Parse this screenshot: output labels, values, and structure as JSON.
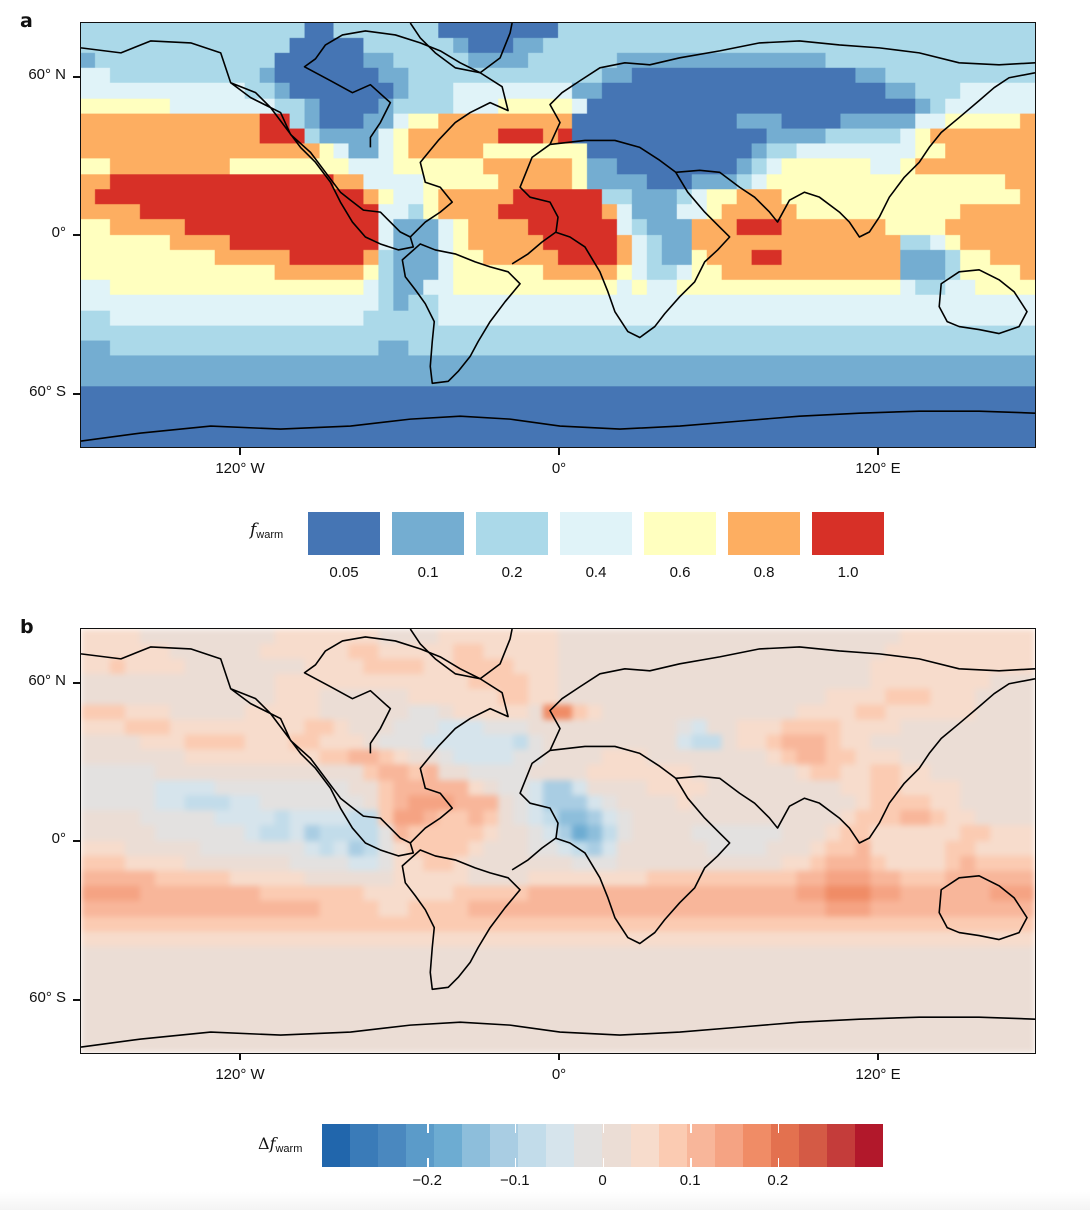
{
  "panels": {
    "a": {
      "label": "a"
    },
    "b": {
      "label": "b"
    }
  },
  "axes": {
    "y_ticks": [
      "60° N",
      "0°",
      "60° S"
    ],
    "x_ticks": [
      "120° W",
      "0°",
      "120° E"
    ]
  },
  "legend_a": {
    "symbol": "f",
    "subscript": "warm",
    "classes": [
      {
        "value": "0.05",
        "color": "#4575b4"
      },
      {
        "value": "0.1",
        "color": "#74add1"
      },
      {
        "value": "0.2",
        "color": "#abd9e9"
      },
      {
        "value": "0.4",
        "color": "#e0f3f8"
      },
      {
        "value": "0.6",
        "color": "#ffffbf"
      },
      {
        "value": "0.8",
        "color": "#fdae61"
      },
      {
        "value": "1.0",
        "color": "#d73027"
      }
    ]
  },
  "legend_b": {
    "prefix": "Δ",
    "symbol": "f",
    "subscript": "warm",
    "tick_labels": [
      "−0.2",
      "−0.1",
      "0",
      "0.1",
      "0.2"
    ],
    "tick_values": [
      -0.2,
      -0.1,
      0,
      0.1,
      0.2
    ],
    "range": [
      -0.32,
      0.32
    ],
    "colors": [
      "#2166ac",
      "#3a7bb8",
      "#4a88bf",
      "#5b9bc9",
      "#6dacd2",
      "#8dbedb",
      "#a9cde3",
      "#c2dcea",
      "#d6e4ec",
      "#e3e1e0",
      "#ebddd5",
      "#f7dccc",
      "#fbcbb2",
      "#f8b69a",
      "#f5a383",
      "#f08c66",
      "#e3714f",
      "#d45a45",
      "#c43c3a",
      "#b2182b"
    ]
  },
  "chart_data": [
    {
      "type": "heatmap",
      "title": "a",
      "description": "Global map of f_warm fraction (classed)",
      "colorbar_label": "f_warm",
      "colorbar_classes": [
        "0.05",
        "0.1",
        "0.2",
        "0.4",
        "0.6",
        "0.8",
        "1.0"
      ],
      "xlabel": "",
      "ylabel": "",
      "x_ticks": [
        "120° W",
        "0°",
        "120° E"
      ],
      "y_ticks": [
        "60° N",
        "0°",
        "60° S"
      ],
      "grid_cols": 64,
      "grid_rows": 28,
      "notes": "Class index 0..6 maps to colorbar classes. Rows north→south.",
      "rows": [
        "2222222222222220022222220000000022222222222222222222222222222222",
        "2222222222222200000222222100011222222222222222222222222222222222",
        "1222222222222000000112222211112222221111111111111122222222222222",
        "3322222222221000000011222222222222211000000000000000112222222222",
        "3333333333322100000001222333333331100000000000000000001122233333",
        "4444443333333221000012222333444443000000000000000000000012333333",
        "5555555555556621000113445555555550000000000011100001111133444445",
        "5555555555556662111134555555666560000000000000111122222345555555",
        "5555555555555555431134555554444444000000000001223333333344555555",
        "4455555555444444443334444445555554110000000012344444433455555555",
        "5566666666666666655333344444555554111100011123444444444444444455",
        "5666666666666666666543345555566666622111234455544444444444444445",
        "5555666666666666666633245555666666653111334555554444444444455555",
        "4455555666666666666631113455556666663211155566655555554444555555",
        "4444445555666666666631113455555666665321155555555555555223455555",
        "4444444445555566666521113445555566665321145556655555555111244555",
        "4444444444444555555421113444444555554322344555555555555111244445",
        "3344444444444444444321133444444444443433444444444444444322334444",
        "3333333333333333333321223333333333333333333333333333333333333333",
        "2233333333333333333222223333333333333333333333333333333333333333",
        "2222222222222222222222222222222222222222222222222222222222222222",
        "1122222222222222222211222222222222222222222222222222222222222222",
        "1111111111111111111111111111111111111111111111111111111111111111",
        "1111111111111111111111111111111111111111111111111111111111111111",
        "0000000000000000000000000000000000000000000000000000000000000000",
        "0000000000000000000000000000000000000000000000000000000000000000",
        "0000000000000000000000000000000000000000000000000000000000000000",
        "0000000000000000000000000000000000000000000000000000000000000000"
      ]
    },
    {
      "type": "heatmap",
      "title": "b",
      "description": "Global map of change in f_warm (Δf_warm)",
      "colorbar_label": "Δf_warm",
      "colorbar_range": [
        -0.32,
        0.32
      ],
      "colorbar_ticks": [
        -0.2,
        -0.1,
        0,
        0.1,
        0.2
      ],
      "n_bins": 20,
      "x_ticks": [
        "120° W",
        "0°",
        "120° E"
      ],
      "y_ticks": [
        "60° N",
        "0°",
        "60° S"
      ],
      "grid_cols": 64,
      "grid_rows": 28,
      "notes": "Class index A..T (0..19) into 20-color diverging ramp; J/K near zero. Rows north→south.",
      "rows": [
        "LLLLKKKKKKKKKLLLLLLLKKKKLLLLLLLLKKKKKKKKKKKKKKKKKKKKKKKLLLLLLLLL",
        "LLLLLLKKKKKKLLLLLLMMLLLLLMMLLLLLKKKKKKKKKKKKKKKKKKKKKKLLLLLLLLLL",
        "LLMLLLLKKKKKKKKLLLLMMMMLLMMMMLLLKKKKKKKKKKKKKKKKKKKKKLLLLLLLLLLL",
        "KKKKKKKKKKKKKLLLLLLLLLLLLLMMMMLLKKKKKKKKKKKKKKKKKKKKKLLLLLLLLKKK",
        "KKKKKKKKKKKKKLLLKKKKKKLLLLLLMMLLKKKKKKKKKKKKKKKKKKLLLLMMMLLLKKKK",
        "MMMLLLKKKKKLLLLLKKKKKKJJKLLLLLKPPMLKKKKKKKKKKKKKLLLLMMLLLLLLKKKK",
        "LLLMMMLLLLLLLLLMMLKKKJJJIIIJJJKKKKKKKKKKJIKKLLLMMMMLLLLKKKKKKKKK",
        "KKKKLLLMMMMLLLMMLLLKJJJIIIIIIHJKKKKKKKKKIHHKLLMNNNMLLKKKKKKKKKKK",
        "KKKKKKKLLLLLLLLLMMNNMLKKJIIIIJJKKKKLLLKKKKKKKKLMNNMMLLLKKKKKKKKK",
        "JJJJJKKKKKKKKKKKKKKMNNMNKKJJJJKKKKLLLLLLLKKKKKKKLMMLLMMLLKKKKKKK",
        "JJJJJIIIIJJJJJJJJJKKMNNNNNLKJJIGGIKKKKLLLLKKKKKKKKKLLMMLLLLKKKKK",
        "JJJJJIIHHHIIJJJJJJJKMNOOONNNKJIGGGIJKKKKLKKKKKKKKKKKLMMMMLLKKKKK",
        "KKKKJJJJJIIIIHIIIIHHMOONMMNMKJIHFFGIJKKKKKKKKKKKKKKLMMMNNMLLKKKK",
        "KKKKKJJJJJJIHHIGHHHHJNMMMMMLKKJIGEFHJKKKKJJJJJJKKKLMMLLLLLLMMLLL",
        "LLLKKKKKJJJJJJJIHIGHJLMMMMLKKKJJIHGIKKKKKKJJJJKKKLMMNLLLLLMMLLLL",
        "MMMLLLLKKKKKKKJJJJIIJLLMMLKKKKKKKJJJKKKKKKKKKKKLLMNNNMLLLLMNMMMM",
        "NNNNNMMMMMLLLLLKKKKKKLLLLLKKKKLLLLLLLLMMMMMMMMMMNNOOONNMMMNNNNNN",
        "OOOONNNNNNNNMMMMMMMLLLLLLMMMMMNNNNNNNNNNNNNNNNNNOOPPPOONNNNNNOOO",
        "NNNNNNNNNNNNNNNNMMMMLLMMMMNNNNNNNNNNNNNNNNNNNNNNNNOOONNNNNNNNNNN",
        "MMMMMMMMMMMMMMMMMMMMMMMMMMMMMMMMMMMMMMMMMMMMMMMMMMMMMMMMMMMMMMMM",
        "LLLLLLLLLLLLLLLLLLLLLLLLLLLLLLLLLLLLLLLLLLLLLLLLLLLLLLLLLLLLLLLL",
        "KKKKKKKKKKKKKKKKKKKKKKKKKKKKKKKKKKKKKKKKKKKKKKKKKKKKKKKKKKKKKKKK",
        "KKKKKKKKKKKKKKKKKKKKKKKKKKKKKKKKKKKKKKKKKKKKKKKKKKKKKKKKKKKKKKKK",
        "KKKKKKKKKKKKKKKKKKKKKKKKKKKKKKKKKKKKKKKKKKKKKKKKKKKKKKKKKKKKKKKK",
        "KKKKKKKKKKKKKKKKKKKKKKKKKKKKKKKKKKKKKKKKKKKKKKKKKKKKKKKKKKKKKKKK",
        "KKKKKKKKKKKKKKKKKKKKKKKKKKKKKKKKKKKKKKKKKKKKKKKKKKKKKKKKKKKKKKKK",
        "KKKKKKKKKKKKKKKKKKKKKKKKKKKKKKKKKKKKKKKKKKKKKKKKKKKKKKKKKKKKKKKK",
        "KKKKKKKKKKKKKKKKKKKKKKKKKKKKKKKKKKKKKKKKKKKKKKKKKKKKKKKKKKKKKKKK"
      ]
    }
  ]
}
